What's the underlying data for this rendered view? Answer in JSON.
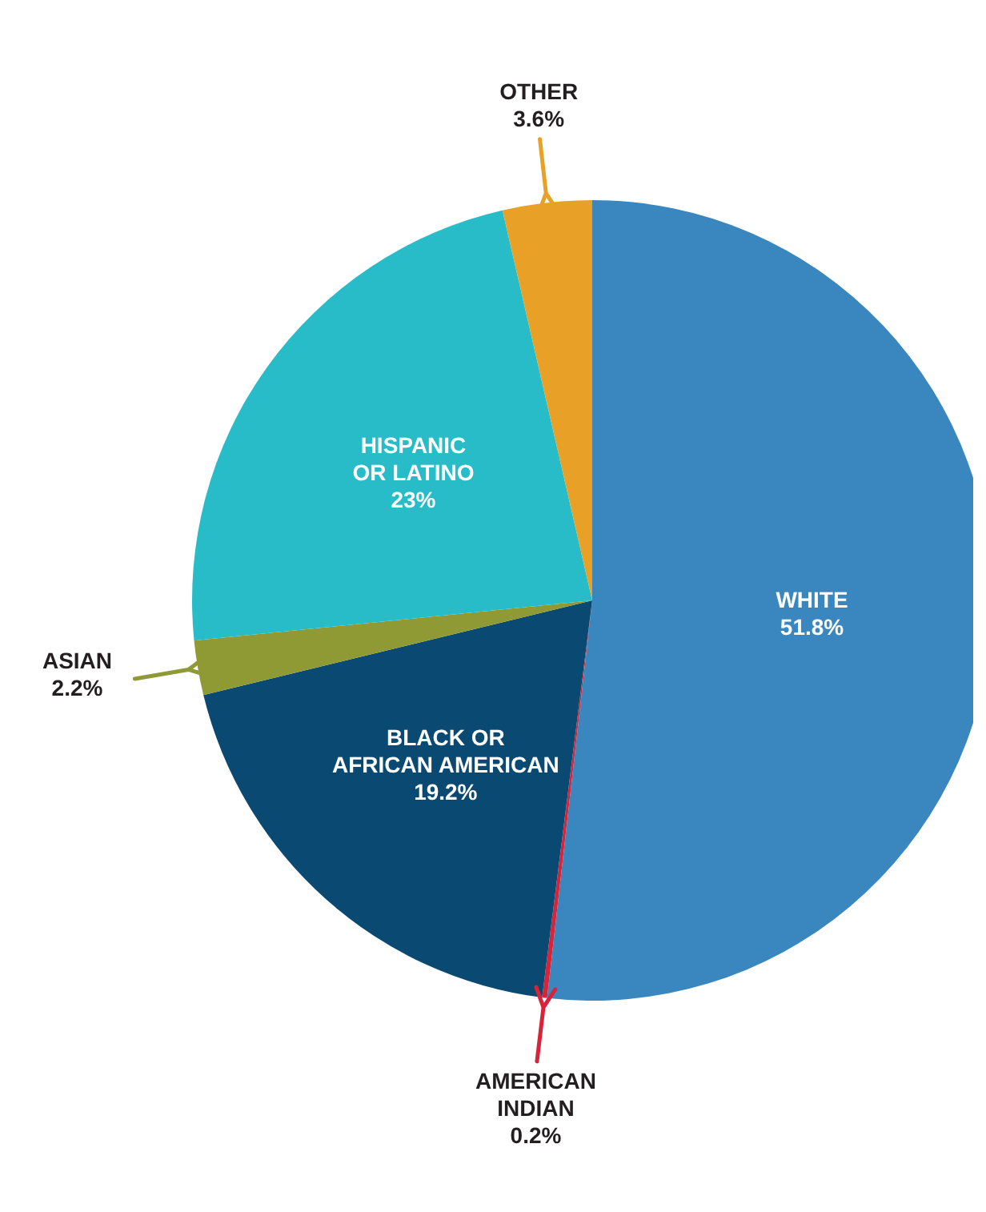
{
  "chart_data": {
    "type": "pie",
    "categories": [
      "WHITE",
      "AMERICAN INDIAN",
      "BLACK OR AFRICAN AMERICAN",
      "ASIAN",
      "HISPANIC OR LATINO",
      "OTHER"
    ],
    "values": [
      51.8,
      0.2,
      19.2,
      2.2,
      23,
      3.6
    ],
    "value_labels": [
      "51.8%",
      "0.2%",
      "19.2%",
      "2.2%",
      "23%",
      "3.6%"
    ],
    "colors": [
      "#3a86bf",
      "#d8243a",
      "#0a4a72",
      "#8f9a35",
      "#28bcc8",
      "#e8a027"
    ]
  }
}
